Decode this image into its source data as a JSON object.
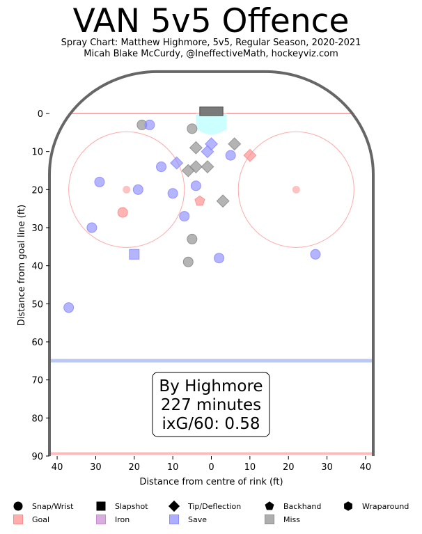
{
  "chart_data": {
    "type": "scatter",
    "title": "VAN 5v5 Offence",
    "subtitle": [
      "Spray Chart: Matthew Highmore, 5v5, Regular Season, 2020-2021",
      "Micah Blake McCurdy, @IneffectiveMath, hockeyviz.com"
    ],
    "xlabel": "Distance from centre of rink (ft)",
    "ylabel": "Distance from goal line (ft)",
    "xlim": [
      -42,
      42
    ],
    "ylim": [
      0,
      90
    ],
    "x_ticks": [
      -40,
      -30,
      -20,
      -10,
      0,
      10,
      20,
      30,
      40
    ],
    "x_tick_labels": [
      "40",
      "30",
      "20",
      "10",
      "0",
      "10",
      "20",
      "30",
      "40"
    ],
    "y_ticks": [
      0,
      10,
      20,
      30,
      40,
      50,
      60,
      70,
      80,
      90
    ],
    "annotation": [
      "By Highmore",
      "227 minutes",
      "ixG/60: 0.58"
    ],
    "colors": {
      "goal": "#ff8c8c",
      "save": "#8c8cff",
      "miss": "#8c8c8c",
      "iron": "#c88cd2",
      "boards": "#666666",
      "goal_line": "#ffaaaa",
      "blue_line": "#aabbee",
      "crease": "#ccffff",
      "circle": "#ffaaaa"
    },
    "points": [
      {
        "x": -37,
        "y": 51,
        "type": "Snap/Wrist",
        "result": "Save"
      },
      {
        "x": -31,
        "y": 30,
        "type": "Snap/Wrist",
        "result": "Save"
      },
      {
        "x": -29,
        "y": 18,
        "type": "Snap/Wrist",
        "result": "Save"
      },
      {
        "x": -23,
        "y": 26,
        "type": "Snap/Wrist",
        "result": "Goal"
      },
      {
        "x": -20,
        "y": 37,
        "type": "Slapshot",
        "result": "Save"
      },
      {
        "x": -19,
        "y": 20,
        "type": "Snap/Wrist",
        "result": "Save"
      },
      {
        "x": -18,
        "y": 3,
        "type": "Snap/Wrist",
        "result": "Miss"
      },
      {
        "x": -16,
        "y": 3,
        "type": "Snap/Wrist",
        "result": "Save"
      },
      {
        "x": -13,
        "y": 14,
        "type": "Snap/Wrist",
        "result": "Save"
      },
      {
        "x": -10,
        "y": 21,
        "type": "Snap/Wrist",
        "result": "Save"
      },
      {
        "x": -9,
        "y": 13,
        "type": "Tip/Deflection",
        "result": "Save"
      },
      {
        "x": -7,
        "y": 27,
        "type": "Snap/Wrist",
        "result": "Save"
      },
      {
        "x": -6,
        "y": 39,
        "type": "Snap/Wrist",
        "result": "Miss"
      },
      {
        "x": -6,
        "y": 15,
        "type": "Tip/Deflection",
        "result": "Miss"
      },
      {
        "x": -5,
        "y": 4,
        "type": "Snap/Wrist",
        "result": "Miss"
      },
      {
        "x": -5,
        "y": 33,
        "type": "Snap/Wrist",
        "result": "Miss"
      },
      {
        "x": -4,
        "y": 19,
        "type": "Snap/Wrist",
        "result": "Save"
      },
      {
        "x": -4,
        "y": 9,
        "type": "Tip/Deflection",
        "result": "Miss"
      },
      {
        "x": -4,
        "y": 14,
        "type": "Tip/Deflection",
        "result": "Miss"
      },
      {
        "x": -3,
        "y": 23,
        "type": "Backhand",
        "result": "Goal"
      },
      {
        "x": -1,
        "y": 14,
        "type": "Tip/Deflection",
        "result": "Miss"
      },
      {
        "x": -1,
        "y": 10,
        "type": "Tip/Deflection",
        "result": "Save"
      },
      {
        "x": 0,
        "y": 8,
        "type": "Tip/Deflection",
        "result": "Save"
      },
      {
        "x": 2,
        "y": 38,
        "type": "Snap/Wrist",
        "result": "Save"
      },
      {
        "x": 3,
        "y": 23,
        "type": "Tip/Deflection",
        "result": "Miss"
      },
      {
        "x": 5,
        "y": 11,
        "type": "Snap/Wrist",
        "result": "Save"
      },
      {
        "x": 6,
        "y": 8,
        "type": "Tip/Deflection",
        "result": "Miss"
      },
      {
        "x": 10,
        "y": 11,
        "type": "Tip/Deflection",
        "result": "Goal"
      },
      {
        "x": 27,
        "y": 37,
        "type": "Snap/Wrist",
        "result": "Save"
      }
    ],
    "legend": {
      "placement": "bottom",
      "items": [
        {
          "label": "Snap/Wrist",
          "shape": "circle",
          "color": "#000000"
        },
        {
          "label": "Slapshot",
          "shape": "square",
          "color": "#000000"
        },
        {
          "label": "Tip/Deflection",
          "shape": "diamond",
          "color": "#000000"
        },
        {
          "label": "Backhand",
          "shape": "pentagon",
          "color": "#000000"
        },
        {
          "label": "Wraparound",
          "shape": "hexagon",
          "color": "#000000"
        },
        {
          "label": "Goal",
          "shape": "square",
          "color": "#ff8c8c"
        },
        {
          "label": "Iron",
          "shape": "square",
          "color": "#c88cd2"
        },
        {
          "label": "Save",
          "shape": "square",
          "color": "#8c8cff"
        },
        {
          "label": "Miss",
          "shape": "square",
          "color": "#8c8c8c"
        }
      ]
    }
  }
}
